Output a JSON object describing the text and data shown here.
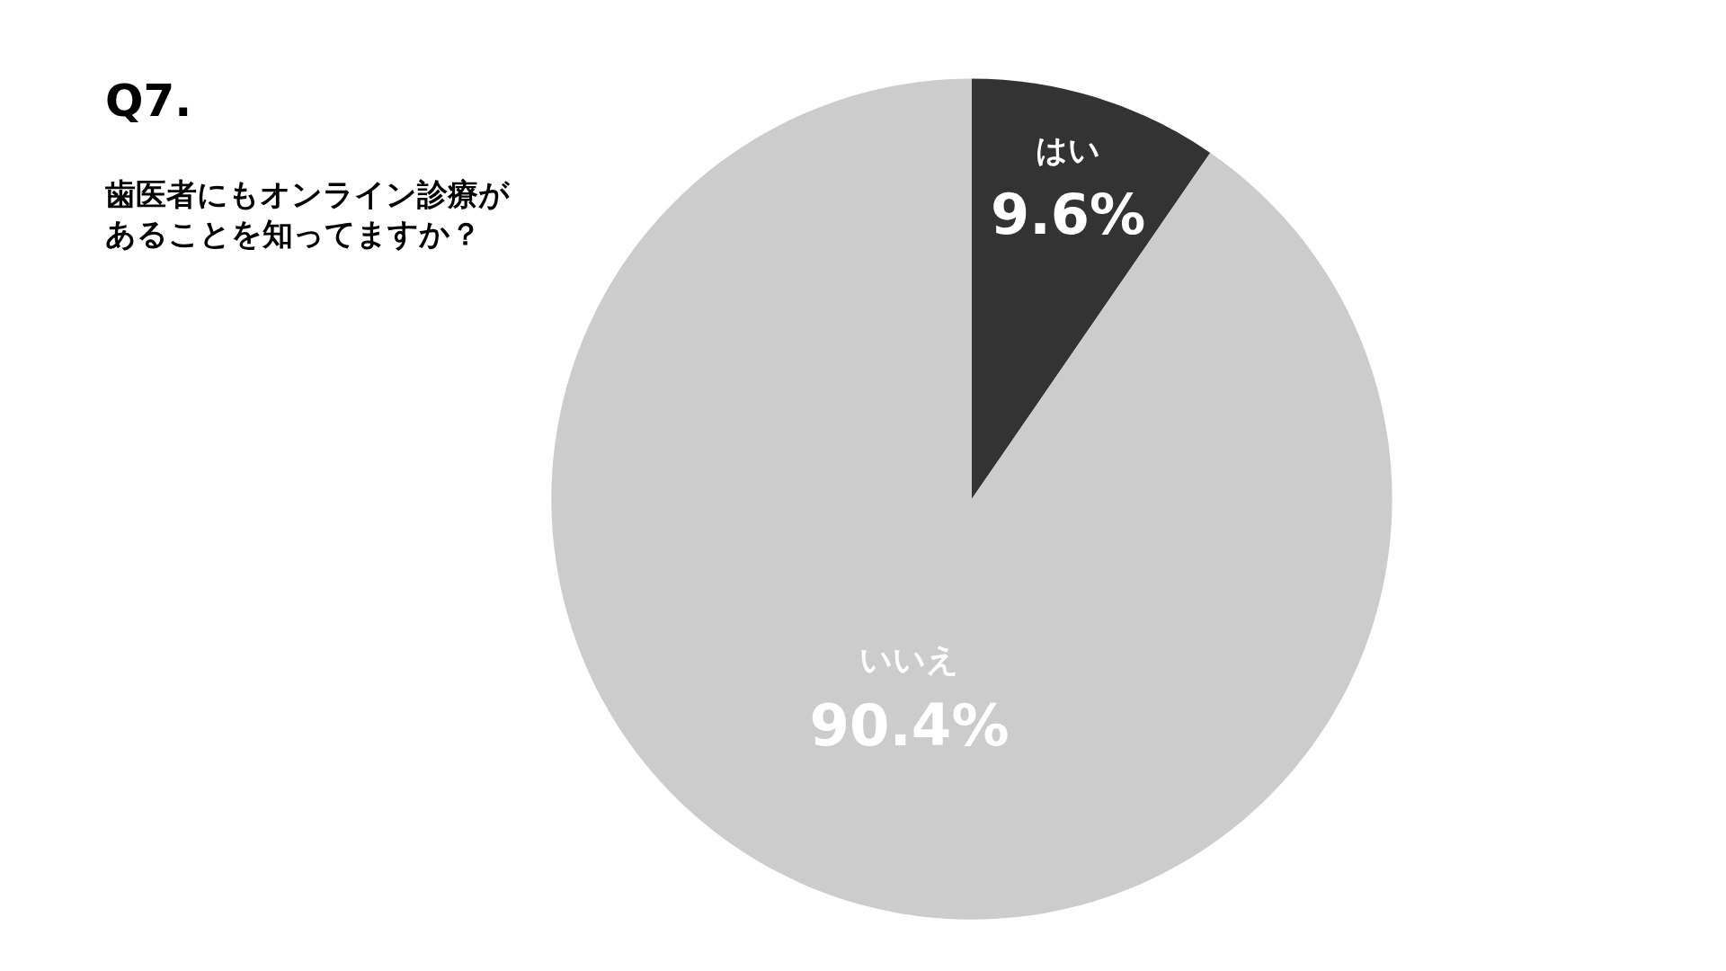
{
  "chart_data": {
    "type": "pie",
    "title": "Q7.",
    "subtitle": "歯医者にもオンライン診療があることを知ってますか？",
    "categories": [
      "はい",
      "いいえ"
    ],
    "values": [
      9.6,
      90.4
    ],
    "colors": [
      "#333333",
      "#cccccc"
    ],
    "value_labels": [
      "9.6%",
      "90.4%"
    ],
    "legend": false
  }
}
